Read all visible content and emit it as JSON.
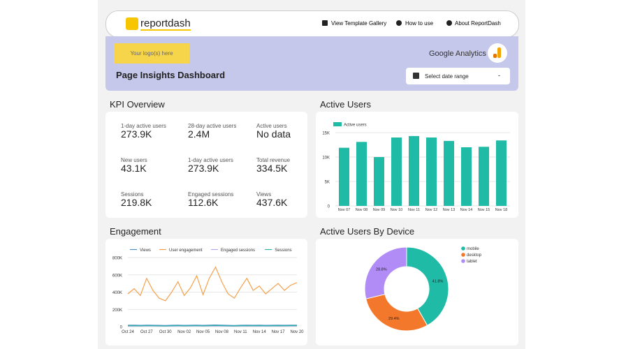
{
  "header": {
    "brand": "reportdash",
    "nav": [
      "View Template Gallery",
      "How to use",
      "About ReportDash"
    ]
  },
  "banner": {
    "logo_placeholder": "Your logo(s) here",
    "title": "Page Insights Dashboard",
    "source": "Google Analytics",
    "date_picker": "Select date range",
    "date_picker_arrow": "-"
  },
  "kpi": {
    "title": "KPI Overview",
    "items": [
      {
        "label": "1-day active users",
        "value": "273.9K"
      },
      {
        "label": "28-day active users",
        "value": "2.4M"
      },
      {
        "label": "Active users",
        "value": "No data"
      },
      {
        "label": "New users",
        "value": "43.1K"
      },
      {
        "label": "1-day active users",
        "value": "273.9K"
      },
      {
        "label": "Total revenue",
        "value": "334.5K"
      },
      {
        "label": "Sessions",
        "value": "219.8K"
      },
      {
        "label": "Engaged sessions",
        "value": "112.6K"
      },
      {
        "label": "Views",
        "value": "437.6K"
      }
    ]
  },
  "chart_data": [
    {
      "type": "bar",
      "title": "Active Users",
      "categories": [
        "Nov 07",
        "Nov 08",
        "Nov 09",
        "Nov 10",
        "Nov 11",
        "Nov 12",
        "Nov 13",
        "Nov 14",
        "Nov 15",
        "Nov 18"
      ],
      "series": [
        {
          "name": "Active users",
          "color": "#1fbba6",
          "values": [
            11900,
            13100,
            10000,
            14000,
            14300,
            14000,
            13300,
            12000,
            12100,
            13400
          ]
        }
      ],
      "ylim": [
        0,
        15000
      ],
      "yticks": [
        0,
        {
          "value": 5000,
          "label": "5K"
        },
        {
          "value": 10000,
          "label": "10K"
        },
        {
          "value": 15000,
          "label": "15K"
        }
      ],
      "grid": true
    },
    {
      "type": "line",
      "title": "Engagement",
      "categories": [
        "Oct 24",
        null,
        null,
        "Oct 27",
        null,
        null,
        "Oct 30",
        null,
        null,
        "Nov 02",
        null,
        null,
        "Nov 05",
        null,
        null,
        "Nov 08",
        null,
        null,
        "Nov 11",
        null,
        null,
        "Nov 14",
        null,
        null,
        "Nov 17",
        null,
        null,
        "Nov 20"
      ],
      "series": [
        {
          "name": "Views",
          "color": "#4a90c8",
          "values": [
            16000,
            17000,
            15000,
            18000,
            16000,
            15000,
            14000,
            16000,
            17000,
            15000,
            16000,
            18000,
            15000,
            17000,
            19000,
            17000,
            15000,
            14000,
            16000,
            17000,
            16000,
            17000,
            15000,
            16000,
            17000,
            16000,
            17000,
            17000
          ]
        },
        {
          "name": "User engagement",
          "color": "#f5a04b",
          "values": [
            380000,
            440000,
            360000,
            560000,
            420000,
            330000,
            300000,
            400000,
            520000,
            360000,
            450000,
            590000,
            370000,
            560000,
            690000,
            520000,
            380000,
            330000,
            450000,
            560000,
            420000,
            470000,
            380000,
            440000,
            500000,
            420000,
            480000,
            510000
          ]
        },
        {
          "name": "Engaged sessions",
          "color": "#b9a5f0",
          "values": [
            7000,
            8000,
            7000,
            9000,
            8000,
            7000,
            6000,
            7000,
            8000,
            7000,
            8000,
            9000,
            7000,
            8000,
            9000,
            8000,
            7000,
            6000,
            7000,
            8000,
            7000,
            8000,
            7000,
            7000,
            8000,
            7000,
            8000,
            8000
          ]
        },
        {
          "name": "Sessions",
          "color": "#2ab3a4",
          "values": [
            11000,
            12000,
            10000,
            13000,
            11000,
            10000,
            9000,
            11000,
            12000,
            10000,
            11000,
            13000,
            10000,
            12000,
            14000,
            12000,
            10000,
            9000,
            11000,
            12000,
            11000,
            12000,
            10000,
            11000,
            12000,
            11000,
            12000,
            12000
          ]
        }
      ],
      "ylim": [
        0,
        800000
      ],
      "yticks": [
        0,
        {
          "value": 200000,
          "label": "200K"
        },
        {
          "value": 400000,
          "label": "400K"
        },
        {
          "value": 600000,
          "label": "600K"
        },
        {
          "value": 800000,
          "label": "800K"
        }
      ],
      "grid": true
    },
    {
      "type": "pie",
      "title": "Active Users By Device",
      "categories": [
        "mobile",
        "desktop",
        "tablet"
      ],
      "values": [
        41.8,
        29.4,
        28.8
      ],
      "value_labels": [
        "41.8%",
        "29.4%",
        "28.8%"
      ],
      "colors": [
        "#1fbba6",
        "#f4782b",
        "#b18cf7"
      ],
      "donut": true
    }
  ]
}
